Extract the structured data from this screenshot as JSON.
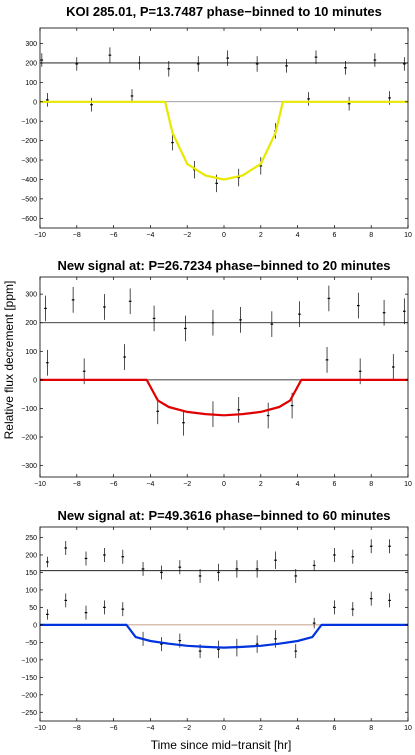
{
  "figure": {
    "ylabel": "Relative flux decrement [ppm]",
    "xlabel": "Time since mid−transit [hr]"
  },
  "chart_data": [
    {
      "type": "scatter",
      "title": "KOI 285.01, P=13.7487 phase−binned to 10 minutes",
      "xlim": [
        -10,
        10
      ],
      "ylim": [
        -650,
        380
      ],
      "xticks": [
        -10,
        -8,
        -6,
        -4,
        -2,
        0,
        2,
        4,
        6,
        8,
        10
      ],
      "yticks": [
        300,
        200,
        100,
        0,
        -100,
        -200,
        -300,
        -400,
        -500,
        -600
      ],
      "offset_baseline": 200,
      "zero_line_color": "#808080",
      "offset_line_color": "#000000",
      "model_color": "#e8e800",
      "binning_minutes": 10,
      "model": {
        "depth": 400,
        "ingress_start": 3.2,
        "flat_start": 2.8,
        "x": [
          -10,
          -3.2,
          -2.8,
          -2,
          -1,
          0,
          1,
          2,
          2.8,
          3.2,
          10
        ],
        "y": [
          0,
          0,
          -160,
          -320,
          -380,
          -400,
          -380,
          -320,
          -160,
          0,
          0
        ]
      },
      "points_upper": [
        {
          "x": -9.9,
          "y": 215,
          "err": 35
        },
        {
          "x": -8.0,
          "y": 195,
          "err": 35
        },
        {
          "x": -6.2,
          "y": 240,
          "err": 40
        },
        {
          "x": -4.6,
          "y": 200,
          "err": 35
        },
        {
          "x": -3.0,
          "y": 170,
          "err": 40
        },
        {
          "x": -1.4,
          "y": 195,
          "err": 40
        },
        {
          "x": 0.2,
          "y": 225,
          "err": 40
        },
        {
          "x": 1.8,
          "y": 195,
          "err": 40
        },
        {
          "x": 3.4,
          "y": 185,
          "err": 35
        },
        {
          "x": 5.0,
          "y": 230,
          "err": 35
        },
        {
          "x": 6.6,
          "y": 175,
          "err": 35
        },
        {
          "x": 8.2,
          "y": 215,
          "err": 35
        },
        {
          "x": 9.8,
          "y": 195,
          "err": 35
        }
      ],
      "points_lower": [
        {
          "x": -9.6,
          "y": 10,
          "err": 35
        },
        {
          "x": -7.2,
          "y": -15,
          "err": 35
        },
        {
          "x": -5.0,
          "y": 30,
          "err": 35
        },
        {
          "x": -2.8,
          "y": -210,
          "err": 40
        },
        {
          "x": -1.6,
          "y": -350,
          "err": 45
        },
        {
          "x": -0.4,
          "y": -420,
          "err": 45
        },
        {
          "x": 0.8,
          "y": -390,
          "err": 45
        },
        {
          "x": 2.0,
          "y": -330,
          "err": 45
        },
        {
          "x": 2.8,
          "y": -150,
          "err": 40
        },
        {
          "x": 4.6,
          "y": 15,
          "err": 35
        },
        {
          "x": 6.8,
          "y": -10,
          "err": 35
        },
        {
          "x": 9.0,
          "y": 20,
          "err": 35
        }
      ]
    },
    {
      "type": "scatter",
      "title": "New signal at: P=26.7234 phase−binned to 20 minutes",
      "xlim": [
        -10,
        10
      ],
      "ylim": [
        -340,
        360
      ],
      "xticks": [
        -10,
        -8,
        -6,
        -4,
        -2,
        0,
        2,
        4,
        6,
        8,
        10
      ],
      "yticks": [
        300,
        200,
        100,
        0,
        -100,
        -200,
        -300
      ],
      "offset_baseline": 200,
      "zero_line_color": "#000000",
      "offset_line_color": "#000000",
      "model_color": "#e00000",
      "binning_minutes": 20,
      "model": {
        "depth": 125,
        "ingress_start": 4.2,
        "flat_start": 3.6,
        "x": [
          -10,
          -4.2,
          -3.6,
          -3,
          -2,
          -1,
          0,
          1,
          2,
          3,
          3.6,
          4.2,
          10
        ],
        "y": [
          0,
          0,
          -72,
          -95,
          -112,
          -120,
          -124,
          -120,
          -112,
          -95,
          -72,
          0,
          0
        ]
      },
      "points_upper": [
        {
          "x": -9.7,
          "y": 250,
          "err": 45
        },
        {
          "x": -8.2,
          "y": 280,
          "err": 45
        },
        {
          "x": -6.5,
          "y": 255,
          "err": 45
        },
        {
          "x": -5.1,
          "y": 275,
          "err": 45
        },
        {
          "x": -3.8,
          "y": 215,
          "err": 45
        },
        {
          "x": -2.1,
          "y": 180,
          "err": 45
        },
        {
          "x": -0.6,
          "y": 200,
          "err": 45
        },
        {
          "x": 0.9,
          "y": 210,
          "err": 45
        },
        {
          "x": 2.6,
          "y": 195,
          "err": 45
        },
        {
          "x": 4.1,
          "y": 230,
          "err": 45
        },
        {
          "x": 5.7,
          "y": 285,
          "err": 45
        },
        {
          "x": 7.3,
          "y": 260,
          "err": 45
        },
        {
          "x": 8.7,
          "y": 235,
          "err": 45
        },
        {
          "x": 9.8,
          "y": 240,
          "err": 45
        }
      ],
      "points_lower": [
        {
          "x": -9.6,
          "y": 60,
          "err": 45
        },
        {
          "x": -7.6,
          "y": 30,
          "err": 45
        },
        {
          "x": -5.4,
          "y": 80,
          "err": 45
        },
        {
          "x": -3.6,
          "y": -110,
          "err": 45
        },
        {
          "x": -2.2,
          "y": -150,
          "err": 45
        },
        {
          "x": -0.6,
          "y": -120,
          "err": 45
        },
        {
          "x": 0.8,
          "y": -105,
          "err": 45
        },
        {
          "x": 2.4,
          "y": -125,
          "err": 45
        },
        {
          "x": 3.7,
          "y": -90,
          "err": 45
        },
        {
          "x": 5.6,
          "y": 70,
          "err": 45
        },
        {
          "x": 7.4,
          "y": 30,
          "err": 45
        },
        {
          "x": 9.2,
          "y": 45,
          "err": 45
        }
      ]
    },
    {
      "type": "scatter",
      "title": "New signal at: P=49.3616 phase−binned to 60 minutes",
      "xlim": [
        -10,
        10
      ],
      "ylim": [
        -275,
        280
      ],
      "xticks": [
        -10,
        -8,
        -6,
        -4,
        -2,
        0,
        2,
        4,
        6,
        8,
        10
      ],
      "yticks": [
        250,
        200,
        150,
        100,
        50,
        0,
        -50,
        -100,
        -150,
        -200,
        -250
      ],
      "offset_baseline": 155,
      "zero_line_color": "#b08060",
      "offset_line_color": "#000000",
      "model_color": "#0033dd",
      "binning_minutes": 60,
      "model": {
        "depth": 65,
        "ingress_start": 5.3,
        "flat_start": 4.8,
        "x": [
          -10,
          -5.3,
          -4.8,
          -4,
          -3,
          -2,
          -1,
          0,
          1,
          2,
          3,
          4,
          4.8,
          5.3,
          10
        ],
        "y": [
          0,
          0,
          -35,
          -46,
          -54,
          -60,
          -63,
          -65,
          -63,
          -60,
          -54,
          -46,
          -35,
          0,
          0
        ]
      },
      "points_upper": [
        {
          "x": -9.6,
          "y": 180,
          "err": 15
        },
        {
          "x": -8.6,
          "y": 220,
          "err": 20
        },
        {
          "x": -7.5,
          "y": 190,
          "err": 20
        },
        {
          "x": -6.5,
          "y": 200,
          "err": 20
        },
        {
          "x": -5.5,
          "y": 195,
          "err": 20
        },
        {
          "x": -4.4,
          "y": 160,
          "err": 20
        },
        {
          "x": -3.4,
          "y": 150,
          "err": 20
        },
        {
          "x": -2.4,
          "y": 165,
          "err": 20
        },
        {
          "x": -1.3,
          "y": 140,
          "err": 20
        },
        {
          "x": -0.3,
          "y": 150,
          "err": 25
        },
        {
          "x": 0.7,
          "y": 160,
          "err": 25
        },
        {
          "x": 1.8,
          "y": 160,
          "err": 25
        },
        {
          "x": 2.8,
          "y": 185,
          "err": 25
        },
        {
          "x": 3.9,
          "y": 140,
          "err": 20
        },
        {
          "x": 4.9,
          "y": 170,
          "err": 15
        },
        {
          "x": 6.0,
          "y": 200,
          "err": 20
        },
        {
          "x": 7.0,
          "y": 195,
          "err": 20
        },
        {
          "x": 8.0,
          "y": 225,
          "err": 20
        },
        {
          "x": 9.0,
          "y": 225,
          "err": 20
        }
      ],
      "points_lower": [
        {
          "x": -9.6,
          "y": 30,
          "err": 15
        },
        {
          "x": -8.6,
          "y": 70,
          "err": 20
        },
        {
          "x": -7.5,
          "y": 35,
          "err": 20
        },
        {
          "x": -6.5,
          "y": 50,
          "err": 20
        },
        {
          "x": -5.5,
          "y": 45,
          "err": 20
        },
        {
          "x": -4.4,
          "y": -40,
          "err": 20
        },
        {
          "x": -3.4,
          "y": -55,
          "err": 20
        },
        {
          "x": -2.4,
          "y": -45,
          "err": 20
        },
        {
          "x": -1.3,
          "y": -75,
          "err": 20
        },
        {
          "x": -0.3,
          "y": -70,
          "err": 25
        },
        {
          "x": 0.7,
          "y": -65,
          "err": 25
        },
        {
          "x": 1.8,
          "y": -55,
          "err": 25
        },
        {
          "x": 2.8,
          "y": -40,
          "err": 25
        },
        {
          "x": 3.9,
          "y": -75,
          "err": 20
        },
        {
          "x": 4.9,
          "y": 5,
          "err": 15
        },
        {
          "x": 6.0,
          "y": 50,
          "err": 20
        },
        {
          "x": 7.0,
          "y": 45,
          "err": 20
        },
        {
          "x": 8.0,
          "y": 75,
          "err": 20
        },
        {
          "x": 9.0,
          "y": 70,
          "err": 20
        }
      ]
    }
  ]
}
